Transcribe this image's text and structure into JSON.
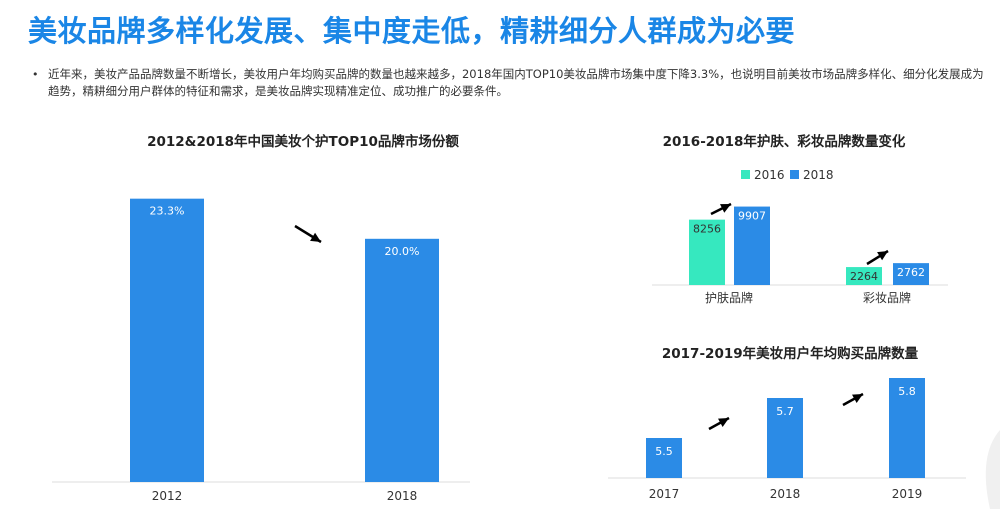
{
  "header": {
    "title": "美妆品牌多样化发展、集中度走低，精耕细分人群成为必要",
    "bullet": "•",
    "description": "近年来，美妆产品品牌数量不断增长，美妆用户年均购买品牌的数量也越来越多，2018年国内TOP10美妆品牌市场集中度下降3.3%，也说明目前美妆市场品牌多样化、细分化发展成为趋势，精耕细分用户群体的特征和需求，是美妆品牌实现精准定位、成功推广的必要条件。"
  },
  "colors": {
    "blue": "#2b8be6",
    "teal": "#36e8bf",
    "accent": "#1a86e6"
  },
  "chart_data": [
    {
      "type": "bar",
      "title": "2012&2018年中国美妆个护TOP10品牌市场份额",
      "categories": [
        "2012",
        "2018"
      ],
      "values": [
        23.3,
        20.0
      ],
      "value_labels": [
        "23.3%",
        "20.0%"
      ],
      "ylim": [
        0,
        25
      ],
      "grid": false,
      "trend_arrow": "down"
    },
    {
      "type": "bar",
      "title": "2016-2018年护肤、彩妆品牌数量变化",
      "categories": [
        "护肤品牌",
        "彩妆品牌"
      ],
      "series": [
        {
          "name": "2016",
          "values": [
            8256,
            2264
          ],
          "color": "#36e8bf"
        },
        {
          "name": "2018",
          "values": [
            9907,
            2762
          ],
          "color": "#2b8be6"
        }
      ],
      "ylim": [
        0,
        12000
      ],
      "legend": "top",
      "grid": false,
      "trend_arrow": "up"
    },
    {
      "type": "bar",
      "title": "2017-2019年美妆用户年均购买品牌数量",
      "categories": [
        "2017",
        "2018",
        "2019"
      ],
      "values": [
        5.5,
        5.7,
        5.8
      ],
      "value_labels": [
        "5.5",
        "5.7",
        "5.8"
      ],
      "ylim": [
        5.3,
        5.85
      ],
      "grid": false,
      "trend_arrow": "up"
    }
  ]
}
